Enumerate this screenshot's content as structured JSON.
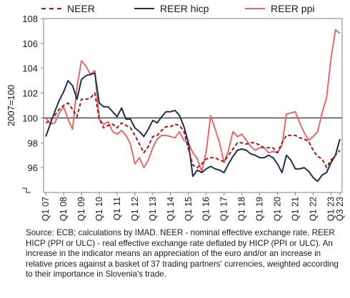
{
  "chart_data": {
    "type": "line",
    "title": "",
    "xlabel": "",
    "ylabel": "2007=100",
    "ylim": [
      94,
      108
    ],
    "yticks": [
      96,
      98,
      100,
      102,
      104,
      106,
      108
    ],
    "reference_line": 100,
    "grid": false,
    "legend_position": "top",
    "x_tick_labels": [
      "Q1 07",
      "Q1 08",
      "Q1 09",
      "Q1 10",
      "Q1 11",
      "Q1 12",
      "Q1 13",
      "Q1 14",
      "Q1 15",
      "Q1 16",
      "Q1 17",
      "Q1 18",
      "Q1 19",
      "Q1 20",
      "Q1 21",
      "Q1 22",
      "Q1 23",
      "Q3 23"
    ],
    "x": [
      "2007Q1",
      "2007Q2",
      "2007Q3",
      "2007Q4",
      "2008Q1",
      "2008Q2",
      "2008Q3",
      "2008Q4",
      "2009Q1",
      "2009Q2",
      "2009Q3",
      "2009Q4",
      "2010Q1",
      "2010Q2",
      "2010Q3",
      "2010Q4",
      "2011Q1",
      "2011Q2",
      "2011Q3",
      "2011Q4",
      "2012Q1",
      "2012Q2",
      "2012Q3",
      "2012Q4",
      "2013Q1",
      "2013Q2",
      "2013Q3",
      "2013Q4",
      "2014Q1",
      "2014Q2",
      "2014Q3",
      "2014Q4",
      "2015Q1",
      "2015Q2",
      "2015Q3",
      "2015Q4",
      "2016Q1",
      "2016Q2",
      "2016Q3",
      "2016Q4",
      "2017Q1",
      "2017Q2",
      "2017Q3",
      "2017Q4",
      "2018Q1",
      "2018Q2",
      "2018Q3",
      "2018Q4",
      "2019Q1",
      "2019Q2",
      "2019Q3",
      "2019Q4",
      "2020Q1",
      "2020Q2",
      "2020Q3",
      "2020Q4",
      "2021Q1",
      "2021Q2",
      "2021Q3",
      "2021Q4",
      "2022Q1",
      "2022Q2",
      "2022Q3",
      "2022Q4",
      "2023Q1",
      "2023Q2",
      "2023Q3"
    ],
    "series": [
      {
        "name": "NEER",
        "color": "#a0171c",
        "style": "dashed",
        "values": [
          99.6,
          99.8,
          100.2,
          100.7,
          101.0,
          101.2,
          100.7,
          100.1,
          101.5,
          101.5,
          101.6,
          102.0,
          99.9,
          99.2,
          99.4,
          99.5,
          99.2,
          99.6,
          99.4,
          99.2,
          98.6,
          97.9,
          97.2,
          97.7,
          98.5,
          98.6,
          99.0,
          99.3,
          99.3,
          99.5,
          99.4,
          98.9,
          97.5,
          96.2,
          96.0,
          96.3,
          96.7,
          96.8,
          96.8,
          96.6,
          96.5,
          97.0,
          97.5,
          98.0,
          98.0,
          97.9,
          98.0,
          98.0,
          97.8,
          97.6,
          97.6,
          97.6,
          97.2,
          98.0,
          98.6,
          98.6,
          98.6,
          98.4,
          98.3,
          98.1,
          97.4,
          96.9,
          96.7,
          96.0,
          96.6,
          97.0,
          97.4
        ]
      },
      {
        "name": "REER hicp",
        "color": "#1f2f4d",
        "style": "solid",
        "values": [
          98.5,
          99.5,
          100.5,
          101.4,
          102.1,
          103.0,
          102.6,
          101.5,
          103.1,
          103.4,
          103.5,
          103.6,
          101.2,
          100.9,
          100.9,
          100.5,
          100.1,
          100.8,
          99.9,
          99.9,
          99.2,
          98.9,
          98.5,
          99.1,
          99.8,
          99.6,
          100.1,
          100.5,
          100.5,
          100.6,
          100.2,
          99.3,
          98.0,
          95.3,
          95.8,
          95.6,
          95.9,
          96.1,
          95.9,
          95.8,
          95.6,
          96.3,
          96.9,
          97.4,
          97.5,
          97.4,
          97.1,
          97.0,
          96.8,
          96.8,
          97.0,
          96.8,
          96.3,
          95.6,
          97.0,
          96.6,
          95.9,
          95.9,
          96.0,
          95.7,
          95.2,
          94.9,
          95.4,
          95.6,
          96.4,
          97.0,
          98.3
        ]
      },
      {
        "name": "REER ppi",
        "color": "#e26a66",
        "style": "solid",
        "values": [
          100.0,
          99.5,
          99.6,
          100.4,
          100.9,
          99.9,
          99.1,
          102.5,
          104.6,
          104.2,
          103.5,
          103.8,
          99.9,
          99.5,
          99.7,
          98.9,
          98.7,
          99.0,
          98.6,
          97.9,
          96.3,
          96.8,
          96.0,
          96.6,
          97.6,
          98.3,
          98.6,
          98.6,
          98.5,
          98.4,
          98.9,
          98.2,
          98.0,
          97.2,
          96.7,
          95.7,
          97.3,
          100.2,
          99.1,
          98.0,
          96.4,
          97.4,
          98.9,
          98.5,
          98.7,
          98.2,
          97.7,
          97.4,
          97.6,
          97.6,
          97.2,
          97.3,
          97.2,
          97.8,
          100.3,
          100.4,
          100.5,
          99.6,
          98.8,
          98.2,
          98.5,
          98.9,
          100.4,
          101.6,
          104.8,
          107.1,
          106.8
        ]
      }
    ]
  },
  "footnote": "Source: ECB; calculations by IMAD. NEER - nominal effective exchange rate, REER HICP (PPI or ULC) - real effective exchange rate deflated by HICP (PPI or ULC). An increase in the indicator means an appreciation of the euro and/or an increase in relative prices against a basket of 37 trading partners' currencies, weighted according to their importance in Slovenia's trade."
}
